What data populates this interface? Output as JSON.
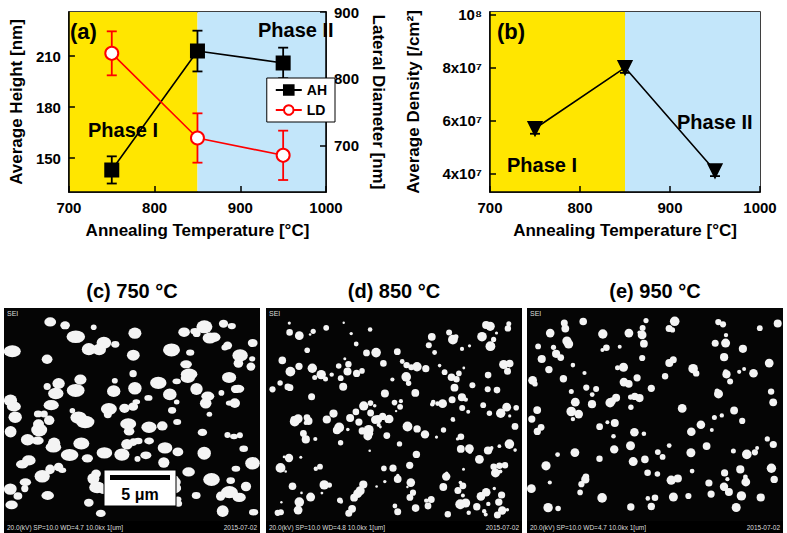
{
  "chart_data": [
    {
      "type": "line",
      "title": "(a)",
      "xlabel": "Annealing Temperature [°C]",
      "ylabel": "Average Height [nm]",
      "y2label": "Lateral Diameter [nm]",
      "x": [
        750,
        850,
        950
      ],
      "series": [
        {
          "name": "AH",
          "color": "#000000",
          "marker": "square",
          "values": [
            143,
            213,
            206
          ],
          "errors": [
            8,
            12,
            9
          ]
        },
        {
          "name": "LD",
          "color": "#ff0000",
          "marker": "circle",
          "axis": "y2",
          "values": [
            838,
            711,
            685
          ],
          "errors": [
            33,
            37,
            37
          ]
        }
      ],
      "xlim": [
        700,
        1000
      ],
      "xticks": [
        700,
        800,
        900,
        1000
      ],
      "ylim": [
        130,
        236
      ],
      "yticks": [
        150,
        180,
        210
      ],
      "y2lim": [
        630,
        900
      ],
      "y2ticks": [
        700,
        800,
        900
      ],
      "phases": [
        {
          "label": "Phase I",
          "range": [
            700,
            850
          ],
          "color": "#ffe600"
        },
        {
          "label": "Phase II",
          "range": [
            850,
            1000
          ],
          "color": "#c3e6fa"
        }
      ],
      "legend": "right",
      "grid": false
    },
    {
      "type": "line",
      "title": "(b)",
      "xlabel": "Annealing Temperature [°C]",
      "ylabel": "Average Density [/cm²]",
      "x": [
        750,
        850,
        950
      ],
      "series": [
        {
          "name": "Average Density",
          "color": "#000000",
          "marker": "triangle-down",
          "values": [
            57000000,
            80000000,
            41000000
          ],
          "errors": [
            2000000,
            2000000,
            2000000
          ]
        }
      ],
      "xlim": [
        700,
        1000
      ],
      "xticks": [
        700,
        800,
        900,
        1000
      ],
      "ylim": [
        33000000,
        101000000
      ],
      "yticks": [
        {
          "value": 40000000,
          "label": "4x10⁷"
        },
        {
          "value": 60000000,
          "label": "6x10⁷"
        },
        {
          "value": 80000000,
          "label": "8x10⁷"
        },
        {
          "value": 100000000,
          "label": "10⁸"
        }
      ],
      "phases": [
        {
          "label": "Phase I",
          "range": [
            700,
            850
          ],
          "color": "#ffe600"
        },
        {
          "label": "Phase II",
          "range": [
            850,
            1000
          ],
          "color": "#c3e6fa"
        }
      ],
      "grid": false
    }
  ],
  "images": [
    {
      "title": "(c) 750 °C",
      "footer": [
        "SEI",
        "20.0(kV) SP=10.0 WD=4.7 10.0kx 1[um]",
        "2015-07-02"
      ],
      "scale_bar": "5 μm"
    },
    {
      "title": "(d) 850 °C",
      "footer": [
        "SEI",
        "20.0(kV) SP=10.0 WD=4.8 10.0kx 1[um]",
        "2015-07-02"
      ]
    },
    {
      "title": "(e) 950 °C",
      "footer": [
        "SEI",
        "20.0(kV) SP=10.0 WD=4.7 10.0kx 1[um]",
        "2015-07-02"
      ]
    }
  ]
}
